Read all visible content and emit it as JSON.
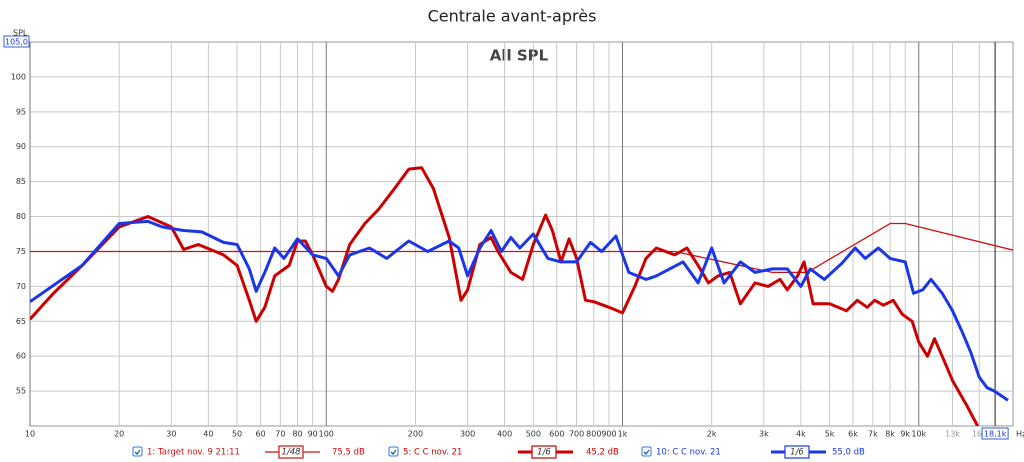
{
  "chart_data": {
    "type": "line",
    "title": "Centrale avant-après",
    "subtitle": "All SPL",
    "y_label": "SPL",
    "x_unit": "Hz",
    "y_top": {
      "value": 105,
      "label": "105,0"
    },
    "cursor": {
      "value": 18100,
      "label": "18,1k"
    },
    "log_x": true,
    "grid": true,
    "xlim": [
      10,
      20800
    ],
    "ylim": [
      50,
      105
    ],
    "yticks": [
      55,
      60,
      65,
      70,
      75,
      80,
      85,
      90,
      95,
      100
    ],
    "xticks": [
      10,
      20,
      30,
      40,
      50,
      60,
      70,
      80,
      90,
      100,
      200,
      300,
      400,
      500,
      600,
      700,
      800,
      900,
      {
        "value": 1000,
        "label": "1k"
      },
      {
        "value": 2000,
        "label": "2k"
      },
      {
        "value": 3000,
        "label": "3k"
      },
      {
        "value": 4000,
        "label": "4k"
      },
      {
        "value": 5000,
        "label": "5k"
      },
      {
        "value": 6000,
        "label": "6k"
      },
      {
        "value": 7000,
        "label": "7k"
      },
      {
        "value": 8000,
        "label": "8k"
      },
      {
        "value": 9000,
        "label": "9k"
      },
      {
        "value": 10000,
        "label": "10k"
      },
      {
        "value": 13000,
        "label": "13k"
      },
      {
        "value": 16000,
        "label": "16k"
      }
    ],
    "series": [
      {
        "name": "1: Target nov. 9 21:11",
        "smoothing": "1/48",
        "level": "75,5 dB",
        "color": "#d01010",
        "width": 1.3,
        "x": [
          10,
          1500,
          3200,
          4200,
          8000,
          9000,
          20800
        ],
        "values": [
          75,
          75,
          72,
          72,
          79,
          79,
          75.2
        ]
      },
      {
        "name": "5: C C nov. 21",
        "smoothing": "1/6",
        "level": "45,2 dB",
        "color": "#cc0000",
        "width": 3,
        "x": [
          10,
          12,
          15,
          20,
          25,
          30,
          33,
          37,
          45,
          50,
          55,
          58,
          62,
          67,
          75,
          80,
          85,
          90,
          100,
          105,
          110,
          120,
          135,
          150,
          170,
          190,
          210,
          230,
          260,
          285,
          300,
          330,
          360,
          380,
          420,
          460,
          500,
          550,
          580,
          620,
          660,
          700,
          750,
          800,
          900,
          1000,
          1100,
          1200,
          1300,
          1500,
          1650,
          1800,
          1950,
          2100,
          2300,
          2500,
          2800,
          3100,
          3400,
          3600,
          3900,
          4100,
          4400,
          5000,
          5700,
          6200,
          6700,
          7100,
          7600,
          8200,
          8800,
          9500,
          10000,
          10700,
          11300,
          12000,
          13000,
          14500,
          15800
        ],
        "values": [
          65.3,
          69,
          73,
          78.5,
          80,
          78.5,
          75.3,
          76,
          74.5,
          73,
          68,
          65,
          67,
          71.5,
          73,
          76.5,
          76.5,
          74.5,
          70,
          69.3,
          71,
          76,
          79,
          81,
          84,
          86.8,
          87,
          84,
          77,
          68,
          69.5,
          76,
          77,
          75,
          72,
          71,
          76,
          80.2,
          78,
          73.5,
          76.8,
          74,
          68,
          67.8,
          67,
          66.2,
          70,
          74,
          75.5,
          74.5,
          75.5,
          73,
          70.5,
          71.5,
          72,
          67.5,
          70.5,
          70,
          71,
          69.5,
          71.5,
          73.5,
          67.5,
          67.5,
          66.5,
          68,
          67,
          68,
          67.3,
          68,
          66,
          65,
          62,
          60,
          62.5,
          60,
          56.5,
          53,
          50
        ]
      },
      {
        "name": "10: C C nov. 21",
        "smoothing": "1/6",
        "level": "55,0 dB",
        "color": "#1a36e8",
        "width": 3,
        "x": [
          10,
          15,
          20,
          25,
          28,
          33,
          38,
          45,
          50,
          55,
          58,
          62,
          67,
          72,
          80,
          90,
          100,
          110,
          120,
          140,
          160,
          190,
          220,
          260,
          280,
          300,
          330,
          360,
          390,
          420,
          450,
          500,
          560,
          620,
          700,
          780,
          850,
          950,
          1050,
          1200,
          1300,
          1600,
          1800,
          2000,
          2200,
          2500,
          2800,
          3200,
          3600,
          4000,
          4300,
          4800,
          5500,
          6100,
          6600,
          7300,
          8000,
          9000,
          9600,
          10300,
          11000,
          12000,
          13000,
          14000,
          15000,
          16000,
          17000,
          18000,
          20000
        ],
        "values": [
          67.8,
          73,
          79,
          79.3,
          78.5,
          78,
          77.8,
          76.3,
          76,
          72.5,
          69.3,
          72,
          75.5,
          74,
          76.8,
          74.5,
          74,
          71.5,
          74.5,
          75.5,
          74,
          76.5,
          75,
          76.5,
          75.5,
          71.5,
          75.5,
          78,
          75,
          77,
          75.5,
          77.5,
          74,
          73.5,
          73.5,
          76.3,
          75,
          77.2,
          72,
          71,
          71.5,
          73.5,
          70.5,
          75.5,
          70.5,
          73.5,
          72,
          72.5,
          72.5,
          70,
          72.5,
          71,
          73.3,
          75.5,
          74,
          75.5,
          74,
          73.5,
          69,
          69.5,
          71,
          69,
          66.5,
          63.5,
          60.5,
          57,
          55.5,
          55,
          53.7
        ]
      }
    ]
  }
}
